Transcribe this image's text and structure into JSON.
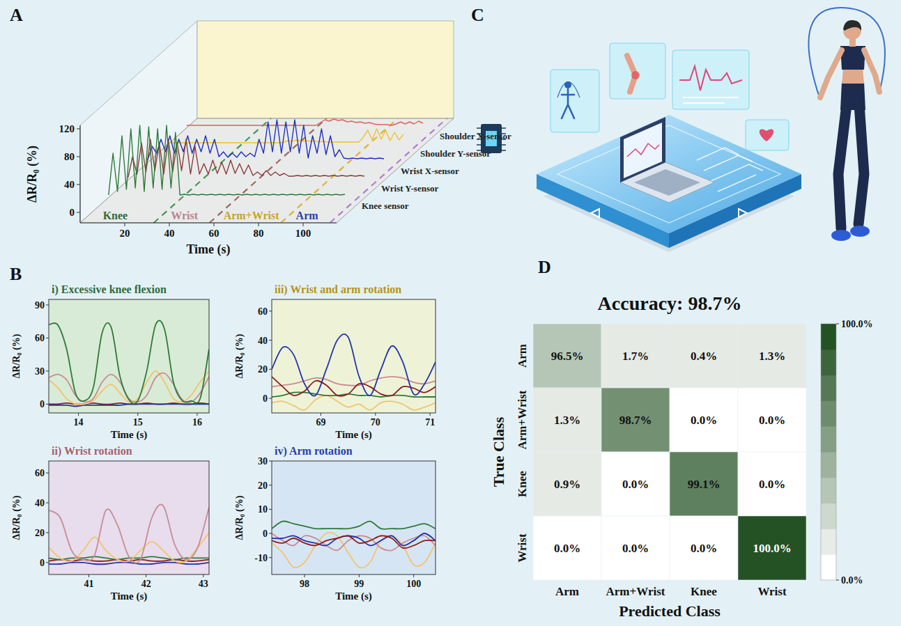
{
  "panel_labels": [
    "A",
    "B",
    "C",
    "D"
  ],
  "chart_data": [
    {
      "type": "waterfall",
      "x_label": "Time (s)",
      "y_label": "ΔR/R₀ (%)",
      "xlim": [
        0,
        115
      ],
      "xticks": [
        20,
        40,
        60,
        80,
        100
      ],
      "ylim": [
        -15,
        125
      ],
      "yticks": [
        0,
        40,
        80,
        120
      ],
      "grid": false,
      "x": [
        4,
        6,
        8,
        10,
        12,
        14,
        16,
        18,
        20,
        22,
        24,
        26,
        28,
        30,
        32,
        34,
        36,
        38,
        40,
        42,
        44,
        46,
        48,
        50,
        52,
        54,
        56,
        58,
        60,
        62,
        64,
        66,
        68,
        70,
        72,
        74,
        76,
        78,
        80,
        82,
        84,
        86,
        88,
        90,
        92,
        94,
        96,
        98,
        100,
        102,
        104,
        106,
        108,
        110
      ],
      "series": [
        {
          "name": "Knee sensor",
          "color": "#2f7a3a",
          "values": [
            0,
            60,
            5,
            85,
            8,
            95,
            10,
            100,
            5,
            98,
            10,
            95,
            8,
            100,
            10,
            90,
            0,
            1,
            0,
            1,
            0,
            1,
            0,
            1,
            0,
            1,
            0,
            1,
            0,
            1,
            0,
            1,
            0,
            1,
            0,
            1,
            0,
            1,
            0,
            1,
            0,
            1,
            0,
            1,
            0,
            1,
            0,
            1,
            0,
            1,
            0,
            1,
            0,
            1
          ]
        },
        {
          "name": "Wrist Y-sensor",
          "color": "#8b3a3a",
          "values": [
            0,
            30,
            5,
            50,
            8,
            55,
            10,
            50,
            5,
            55,
            8,
            50,
            10,
            55,
            5,
            45,
            5,
            20,
            5,
            25,
            6,
            22,
            5,
            25,
            6,
            20,
            5,
            18,
            3,
            8,
            3,
            10,
            3,
            8,
            3,
            6,
            2,
            2,
            3,
            2,
            3,
            2,
            3,
            2,
            3,
            2,
            3,
            2,
            3,
            2,
            3,
            2,
            3,
            2
          ]
        },
        {
          "name": "Wrist X-sensor",
          "color": "#1f2fc0",
          "values": [
            0,
            20,
            10,
            30,
            12,
            35,
            10,
            30,
            12,
            35,
            10,
            30,
            12,
            35,
            10,
            30,
            5,
            12,
            4,
            10,
            4,
            12,
            5,
            10,
            5,
            30,
            10,
            55,
            12,
            58,
            10,
            55,
            12,
            58,
            10,
            50,
            3,
            35,
            10,
            45,
            8,
            35,
            5,
            15,
            3,
            2,
            3,
            2,
            3,
            2,
            3,
            2,
            3,
            2
          ]
        },
        {
          "name": "Shoulder Y-sensor",
          "color": "#f0c030",
          "values": [
            0,
            0,
            0,
            0,
            0,
            0,
            0,
            0,
            0,
            0,
            0,
            0,
            0,
            0,
            0,
            0,
            0,
            0,
            0,
            0,
            0,
            0,
            0,
            0,
            0,
            0,
            0,
            3,
            2,
            4,
            2,
            3,
            2,
            3,
            1,
            2,
            1,
            1,
            1,
            1,
            1,
            1,
            1,
            1,
            8,
            18,
            4,
            20,
            5,
            18,
            3,
            15,
            4,
            12
          ]
        },
        {
          "name": "Shoulder X-sensor",
          "color": "#e06060",
          "values": [
            0,
            0,
            0,
            0,
            0,
            0,
            0,
            0,
            0,
            0,
            0,
            0,
            0,
            0,
            0,
            0,
            0,
            0,
            0,
            0,
            0,
            0,
            0,
            0,
            0,
            0,
            0,
            0,
            0,
            0,
            4,
            8,
            6,
            9,
            7,
            8,
            5,
            6,
            4,
            5,
            3,
            4,
            2,
            1,
            1,
            1,
            0,
            2,
            5,
            2,
            5,
            2,
            6,
            3
          ]
        }
      ],
      "annotations": [
        {
          "text": "Knee",
          "x": 14,
          "color": "#2f6b3a"
        },
        {
          "text": "Wrist",
          "x": 45,
          "color": "#b9848a"
        },
        {
          "text": "Arm+Wrist",
          "x": 75,
          "color": "#c9a227"
        },
        {
          "text": "Arm",
          "x": 100,
          "color": "#2a3ea8"
        }
      ],
      "phase_bounds": [
        {
          "x": 33,
          "color": "#3f9a55"
        },
        {
          "x": 58,
          "color": "#a0665f"
        },
        {
          "x": 90,
          "color": "#e0b030"
        },
        {
          "x": 112,
          "color": "#b27ccf"
        }
      ]
    },
    {
      "type": "line",
      "title": "i) Excessive knee flexion",
      "x_label": "Time (s)",
      "y_label": "ΔR/R₀ (%)",
      "xlim": [
        13.5,
        16.2
      ],
      "xticks": [
        14,
        15,
        16
      ],
      "ylim": [
        -8,
        95
      ],
      "yticks": [
        0,
        30,
        60,
        90
      ],
      "grid": false,
      "x": [
        13.5,
        13.65,
        13.8,
        13.95,
        14.1,
        14.25,
        14.4,
        14.55,
        14.7,
        14.85,
        15,
        15.15,
        15.3,
        15.45,
        15.6,
        15.75,
        15.9,
        16.05,
        16.2
      ],
      "series": [
        {
          "color": "#8b1c1c",
          "values": [
            0,
            0,
            1,
            0,
            0,
            1,
            0,
            0,
            1,
            0,
            0,
            1,
            0,
            0,
            1,
            0,
            0,
            1,
            0
          ]
        },
        {
          "color": "#2233aa",
          "values": [
            -1,
            -1,
            -1,
            -2,
            -1,
            -1,
            -1,
            -1,
            -1,
            0,
            0,
            0,
            0,
            0,
            0,
            0,
            0,
            0,
            0
          ]
        },
        {
          "color": "#f2c46b",
          "values": [
            22,
            15,
            5,
            0,
            0,
            3,
            12,
            18,
            10,
            2,
            5,
            20,
            30,
            20,
            5,
            2,
            8,
            20,
            30
          ]
        },
        {
          "color": "#c98b93",
          "values": [
            24,
            27,
            22,
            8,
            2,
            5,
            20,
            27,
            20,
            5,
            2,
            8,
            24,
            28,
            18,
            4,
            2,
            10,
            25
          ]
        },
        {
          "color": "#2f7a3a",
          "values": [
            72,
            72,
            50,
            10,
            3,
            15,
            65,
            70,
            25,
            4,
            3,
            30,
            72,
            68,
            20,
            3,
            3,
            5,
            50
          ]
        }
      ]
    },
    {
      "type": "line",
      "title": "iii) Wrist and arm rotation",
      "x_label": "Time (s)",
      "y_label": "ΔR/R₀ (%)",
      "xlim": [
        68.1,
        71.1
      ],
      "xticks": [
        69,
        70,
        71
      ],
      "ylim": [
        -10,
        68
      ],
      "yticks": [
        0,
        20,
        40,
        60
      ],
      "grid": false,
      "x": [
        68.1,
        68.3,
        68.5,
        68.7,
        68.9,
        69.1,
        69.3,
        69.5,
        69.7,
        69.9,
        70.1,
        70.3,
        70.5,
        70.7,
        70.9,
        71.1
      ],
      "series": [
        {
          "color": "#f2c46b",
          "values": [
            -3,
            -2,
            -5,
            -8,
            -1,
            2,
            -2,
            -6,
            -4,
            -8,
            -3,
            -2,
            -4,
            -8,
            -6,
            -3
          ]
        },
        {
          "color": "#2f7a3a",
          "values": [
            1,
            2,
            4,
            4,
            3,
            2,
            2,
            3,
            2,
            2,
            1,
            2,
            2,
            1,
            1,
            1
          ]
        },
        {
          "color": "#c98b93",
          "values": [
            8,
            9,
            10,
            12,
            14,
            13,
            10,
            9,
            9,
            12,
            14,
            15,
            14,
            11,
            10,
            12
          ]
        },
        {
          "color": "#8b1c1c",
          "values": [
            15,
            8,
            2,
            5,
            12,
            9,
            2,
            3,
            10,
            8,
            3,
            2,
            8,
            7,
            4,
            8
          ]
        },
        {
          "color": "#2233aa",
          "values": [
            20,
            35,
            30,
            10,
            2,
            20,
            40,
            42,
            15,
            2,
            20,
            36,
            25,
            3,
            10,
            25
          ]
        }
      ]
    },
    {
      "type": "line",
      "title": "ii) Wrist rotation",
      "x_label": "Time (s)",
      "y_label": "ΔR/R₀ (%)",
      "xlim": [
        40.3,
        43.1
      ],
      "xticks": [
        41,
        42,
        43
      ],
      "ylim": [
        -8,
        68
      ],
      "yticks": [
        0,
        20,
        40,
        60
      ],
      "grid": false,
      "x": [
        40.3,
        40.5,
        40.7,
        40.9,
        41.1,
        41.3,
        41.5,
        41.7,
        41.9,
        42.1,
        42.3,
        42.5,
        42.7,
        42.9,
        43.1
      ],
      "series": [
        {
          "color": "#2233aa",
          "values": [
            -1,
            -1,
            0,
            0,
            -1,
            -1,
            0,
            0,
            -1,
            -1,
            0,
            0,
            -1,
            -1,
            0
          ]
        },
        {
          "color": "#8b1c1c",
          "values": [
            1,
            2,
            1,
            2,
            1,
            1,
            2,
            1,
            2,
            1,
            1,
            2,
            1,
            1,
            2
          ]
        },
        {
          "color": "#2f7a3a",
          "values": [
            3,
            2,
            3,
            3,
            4,
            3,
            2,
            3,
            3,
            4,
            3,
            2,
            3,
            3,
            3
          ]
        },
        {
          "color": "#f2c46b",
          "values": [
            10,
            3,
            1,
            8,
            17,
            8,
            2,
            1,
            8,
            14,
            8,
            1,
            1,
            10,
            20
          ]
        },
        {
          "color": "#c98b93",
          "values": [
            35,
            30,
            8,
            2,
            5,
            35,
            25,
            4,
            2,
            30,
            38,
            12,
            2,
            10,
            37
          ]
        }
      ]
    },
    {
      "type": "line",
      "title": "iv) Arm rotation",
      "x_label": "Time (s)",
      "y_label": "ΔR/R₀ (%)",
      "xlim": [
        97.4,
        100.4
      ],
      "xticks": [
        98,
        99,
        100
      ],
      "ylim": [
        -17,
        30
      ],
      "yticks": [
        -10,
        0,
        10,
        20,
        30
      ],
      "grid": false,
      "x": [
        97.4,
        97.6,
        97.8,
        98,
        98.2,
        98.4,
        98.6,
        98.8,
        99,
        99.2,
        99.4,
        99.6,
        99.8,
        100,
        100.2,
        100.4
      ],
      "series": [
        {
          "color": "#f2c46b",
          "values": [
            -4,
            -8,
            -14,
            -12,
            -5,
            0,
            -1,
            -8,
            -14,
            -12,
            -3,
            -1,
            -5,
            -13,
            -12,
            -4
          ]
        },
        {
          "color": "#c98b93",
          "values": [
            0,
            -3,
            -5,
            -1,
            -2,
            -5,
            -7,
            -3,
            -1,
            -2,
            -6,
            -7,
            -4,
            -2,
            -1,
            -5
          ]
        },
        {
          "color": "#2233aa",
          "values": [
            -2,
            -2,
            -1,
            -3,
            -4,
            -5,
            -2,
            -1,
            -2,
            -5,
            -3,
            -1,
            -5,
            -3,
            0,
            -3
          ]
        },
        {
          "color": "#8b1c1c",
          "values": [
            -3,
            -4,
            -2,
            -4,
            -5,
            -3,
            -2,
            -1,
            -4,
            -3,
            -1,
            -2,
            -6,
            -5,
            -3,
            -3
          ]
        },
        {
          "color": "#2f7a3a",
          "values": [
            2,
            5,
            4,
            3,
            2,
            2,
            2,
            2,
            3,
            5,
            2,
            2,
            2,
            3,
            4,
            2
          ]
        }
      ]
    },
    {
      "type": "heatmap",
      "title": "Accuracy: 98.7%",
      "x_label": "Predicted Class",
      "y_label": "True Class",
      "x_categories": [
        "Arm",
        "Arm+Wrist",
        "Knee",
        "Wrist"
      ],
      "y_categories": [
        "Arm",
        "Arm+Wrist",
        "Knee",
        "Wrist"
      ],
      "cells": [
        [
          96.5,
          1.7,
          0.4,
          1.3
        ],
        [
          1.3,
          98.7,
          0.0,
          0.0
        ],
        [
          0.9,
          0.0,
          99.1,
          0.0
        ],
        [
          0.0,
          0.0,
          0.0,
          100.0
        ]
      ],
      "value_labels": [
        [
          "96.5%",
          "1.7%",
          "0.4%",
          "1.3%"
        ],
        [
          "1.3%",
          "98.7%",
          "0.0%",
          "0.0%"
        ],
        [
          "0.9%",
          "0.0%",
          "99.1%",
          "0.0%"
        ],
        [
          "0.0%",
          "0.0%",
          "0.0%",
          "100.0%"
        ]
      ],
      "data_labels": true,
      "color_range": [
        0,
        100
      ],
      "color_ticks": [
        {
          "value": 100,
          "label": "100.0%"
        },
        {
          "value": 0,
          "label": "0.0%"
        }
      ]
    }
  ]
}
